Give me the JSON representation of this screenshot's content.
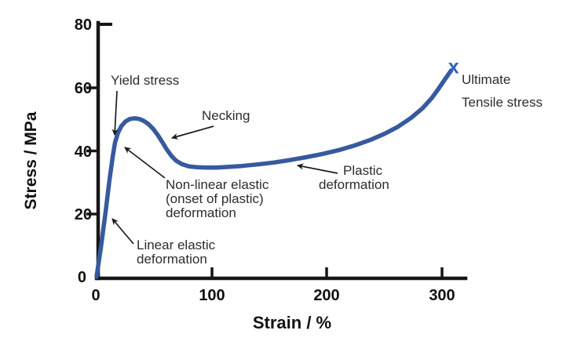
{
  "chart_data": {
    "type": "line",
    "title": "",
    "xlabel": "Strain / %",
    "ylabel": "Stress / MPa",
    "xlim": [
      0,
      320
    ],
    "ylim": [
      0,
      80
    ],
    "x_ticks": [
      0,
      100,
      200,
      300
    ],
    "y_ticks": [
      0,
      20,
      40,
      60,
      80
    ],
    "grid": false,
    "legend": "none",
    "series": [
      {
        "name": "stress-strain curve",
        "color": "#37599e",
        "points": [
          [
            0,
            0
          ],
          [
            4,
            10
          ],
          [
            8,
            21
          ],
          [
            11,
            30
          ],
          [
            14,
            38
          ],
          [
            16,
            42.5
          ],
          [
            18.5,
            45.5
          ],
          [
            21.5,
            47.7
          ],
          [
            25,
            49.2
          ],
          [
            29,
            50
          ],
          [
            33,
            50.2
          ],
          [
            37,
            50
          ],
          [
            41,
            49.4
          ],
          [
            45,
            48.4
          ],
          [
            49,
            46.9
          ],
          [
            53,
            45
          ],
          [
            57,
            42.7
          ],
          [
            61,
            40.3
          ],
          [
            65,
            38.3
          ],
          [
            69,
            36.8
          ],
          [
            74,
            35.7
          ],
          [
            80,
            35
          ],
          [
            87,
            34.7
          ],
          [
            95,
            34.6
          ],
          [
            104,
            34.6
          ],
          [
            114,
            34.8
          ],
          [
            126,
            35.1
          ],
          [
            140,
            35.6
          ],
          [
            154,
            36.2
          ],
          [
            168,
            37
          ],
          [
            182,
            37.9
          ],
          [
            196,
            38.9
          ],
          [
            210,
            40.1
          ],
          [
            224,
            41.6
          ],
          [
            238,
            43.4
          ],
          [
            250,
            45.3
          ],
          [
            262,
            47.6
          ],
          [
            273,
            50.3
          ],
          [
            283,
            53.4
          ],
          [
            291,
            56.6
          ],
          [
            297,
            59.6
          ],
          [
            303,
            62.8
          ],
          [
            308,
            65.4
          ]
        ]
      }
    ],
    "end_marker": {
      "symbol": "x",
      "strain": 310,
      "stress": 66.5,
      "color": "#3062b5"
    },
    "annotations": [
      {
        "id": "yield-stress",
        "lines": [
          "Yield stress"
        ],
        "points_to": {
          "strain": 16,
          "stress": 44
        }
      },
      {
        "id": "necking",
        "lines": [
          "Necking"
        ],
        "points_to": {
          "strain": 64,
          "stress": 44
        }
      },
      {
        "id": "nonlinear",
        "lines": [
          "Non-linear elastic",
          "(onset of plastic)",
          "deformation"
        ],
        "points_to": {
          "strain": 24,
          "stress": 41
        }
      },
      {
        "id": "linear",
        "lines": [
          "Linear elastic",
          "deformation"
        ],
        "points_to": {
          "strain": 13,
          "stress": 18
        }
      },
      {
        "id": "plastic",
        "lines": [
          "Plastic",
          "deformation"
        ],
        "points_to": {
          "strain": 174,
          "stress": 35
        }
      },
      {
        "id": "ultimate-tensile",
        "lines": [
          "Ultimate",
          "Tensile stress"
        ],
        "points_to": {
          "strain": 310,
          "stress": 66.5
        }
      }
    ]
  }
}
